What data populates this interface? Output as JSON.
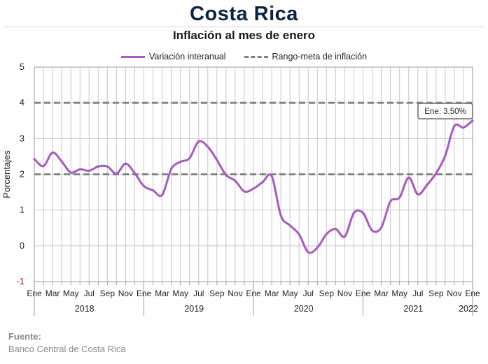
{
  "page": {
    "title": "Costa Rica",
    "subtitle": "Inflación al mes de enero",
    "source_label": "Fuente:",
    "source_text": "Banco Central de Costa Rica"
  },
  "chart_data": {
    "type": "line",
    "title": "Inflación al mes de enero",
    "ylabel": "Porcentajes",
    "xlabel": "",
    "ylim": [
      -1,
      5
    ],
    "yticks": [
      "-1",
      "0",
      "1",
      "2",
      "3",
      "4",
      "5"
    ],
    "grid": true,
    "legend_position": "top",
    "colors": {
      "series": "#a55bbf",
      "target": "#808080"
    },
    "month_labels": [
      "Ene",
      "Mar",
      "May",
      "Jul",
      "Sep",
      "Nov",
      "Ene",
      "Mar",
      "May",
      "Jul",
      "Sep",
      "Nov",
      "Ene",
      "Mar",
      "May",
      "Jul",
      "Sep",
      "Nov",
      "Ene",
      "Mar",
      "May",
      "Jul",
      "Sep",
      "Nov",
      "Ene"
    ],
    "year_labels": [
      "2018",
      "2019",
      "2020",
      "2021",
      "2022"
    ],
    "annotation": "Ene. 3.50%",
    "x": [
      "2018-01",
      "2018-02",
      "2018-03",
      "2018-04",
      "2018-05",
      "2018-06",
      "2018-07",
      "2018-08",
      "2018-09",
      "2018-10",
      "2018-11",
      "2018-12",
      "2019-01",
      "2019-02",
      "2019-03",
      "2019-04",
      "2019-05",
      "2019-06",
      "2019-07",
      "2019-08",
      "2019-09",
      "2019-10",
      "2019-11",
      "2019-12",
      "2020-01",
      "2020-02",
      "2020-03",
      "2020-04",
      "2020-05",
      "2020-06",
      "2020-07",
      "2020-08",
      "2020-09",
      "2020-10",
      "2020-11",
      "2020-12",
      "2021-01",
      "2021-02",
      "2021-03",
      "2021-04",
      "2021-05",
      "2021-06",
      "2021-07",
      "2021-08",
      "2021-09",
      "2021-10",
      "2021-11",
      "2021-12",
      "2022-01"
    ],
    "series": [
      {
        "name": "Variación interanual",
        "values": [
          2.43,
          2.23,
          2.61,
          2.36,
          2.05,
          2.14,
          2.1,
          2.22,
          2.22,
          2.02,
          2.3,
          2.03,
          1.67,
          1.55,
          1.42,
          2.15,
          2.35,
          2.45,
          2.92,
          2.77,
          2.4,
          1.98,
          1.82,
          1.52,
          1.6,
          1.78,
          1.95,
          0.85,
          0.57,
          0.32,
          -0.18,
          -0.05,
          0.33,
          0.47,
          0.26,
          0.92,
          0.92,
          0.43,
          0.51,
          1.24,
          1.35,
          1.91,
          1.44,
          1.7,
          2.03,
          2.52,
          3.35,
          3.31,
          3.5
        ]
      },
      {
        "name": "Rango-meta de inflación",
        "lines": [
          2,
          4
        ]
      }
    ]
  }
}
